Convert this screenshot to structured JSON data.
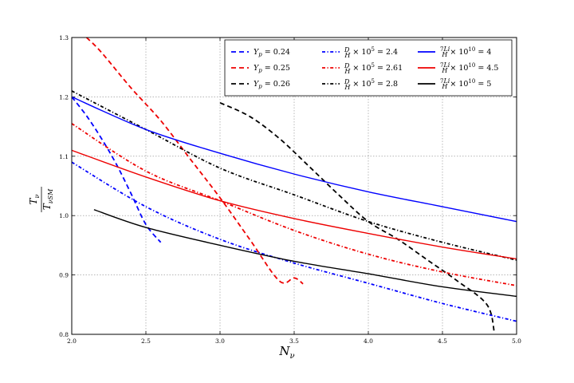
{
  "chart_data": {
    "type": "line",
    "xlabel": "N_ν",
    "ylabel": "T_ν / T_νSM",
    "xlim": [
      2.0,
      5.0
    ],
    "ylim": [
      0.8,
      1.3
    ],
    "xticks": [
      "2.0",
      "2.5",
      "3.0",
      "3.5",
      "4.0",
      "4.5",
      "5.0"
    ],
    "yticks": [
      "0.8",
      "0.9",
      "1.0",
      "1.1",
      "1.2",
      "1.3"
    ],
    "grid": true,
    "legend_position": "top-right",
    "series": [
      {
        "name": "Y_p = 0.24",
        "color": "#0000ff",
        "style": "dashed",
        "x": [
          2.0,
          2.1,
          2.2,
          2.3,
          2.4,
          2.5,
          2.6
        ],
        "y": [
          1.2,
          1.168,
          1.13,
          1.087,
          1.037,
          0.985,
          0.955
        ]
      },
      {
        "name": "Y_p = 0.25",
        "color": "#ee0000",
        "style": "dashed",
        "x": [
          2.1,
          2.2,
          2.4,
          2.6,
          2.8,
          3.0,
          3.2,
          3.4,
          3.5,
          3.56
        ],
        "y": [
          1.3,
          1.275,
          1.215,
          1.16,
          1.095,
          1.03,
          0.96,
          0.89,
          0.895,
          0.885
        ]
      },
      {
        "name": "Y_p = 0.26",
        "color": "#000000",
        "style": "dashed",
        "x": [
          3.0,
          3.2,
          3.4,
          3.6,
          3.8,
          4.0,
          4.2,
          4.4,
          4.6,
          4.8,
          4.85
        ],
        "y": [
          1.19,
          1.167,
          1.13,
          1.083,
          1.035,
          0.99,
          0.96,
          0.925,
          0.89,
          0.85,
          0.803
        ]
      },
      {
        "name": "D/H × 10^5 = 2.4",
        "color": "#0000ff",
        "style": "dashdot",
        "x": [
          2.0,
          2.5,
          3.0,
          3.5,
          4.0,
          4.5,
          5.0
        ],
        "y": [
          1.09,
          1.015,
          0.96,
          0.92,
          0.886,
          0.852,
          0.822
        ]
      },
      {
        "name": "D/H × 10^5 = 2.61",
        "color": "#ee0000",
        "style": "dashdot",
        "x": [
          2.0,
          2.5,
          3.0,
          3.5,
          4.0,
          4.5,
          5.0
        ],
        "y": [
          1.155,
          1.075,
          1.025,
          0.975,
          0.935,
          0.905,
          0.882
        ]
      },
      {
        "name": "D/H × 10^5 = 2.8",
        "color": "#000000",
        "style": "dashdot",
        "x": [
          2.0,
          2.5,
          3.0,
          3.5,
          4.0,
          4.5,
          5.0
        ],
        "y": [
          1.21,
          1.145,
          1.08,
          1.035,
          0.99,
          0.955,
          0.925
        ]
      },
      {
        "name": "7Li/H × 10^10 = 4",
        "color": "#0000ff",
        "style": "solid",
        "x": [
          2.0,
          2.5,
          3.0,
          3.5,
          4.0,
          4.5,
          5.0
        ],
        "y": [
          1.2,
          1.145,
          1.105,
          1.07,
          1.04,
          1.015,
          0.99
        ]
      },
      {
        "name": "7Li/H × 10^10 = 4.5",
        "color": "#ee0000",
        "style": "solid",
        "x": [
          2.0,
          2.5,
          3.0,
          3.5,
          4.0,
          4.5,
          5.0
        ],
        "y": [
          1.11,
          1.065,
          1.025,
          0.995,
          0.97,
          0.947,
          0.927
        ]
      },
      {
        "name": "7Li/H × 10^10 = 5",
        "color": "#000000",
        "style": "solid",
        "x": [
          2.15,
          2.5,
          3.0,
          3.5,
          4.0,
          4.5,
          5.0
        ],
        "y": [
          1.01,
          0.98,
          0.95,
          0.923,
          0.902,
          0.88,
          0.864
        ]
      }
    ]
  }
}
